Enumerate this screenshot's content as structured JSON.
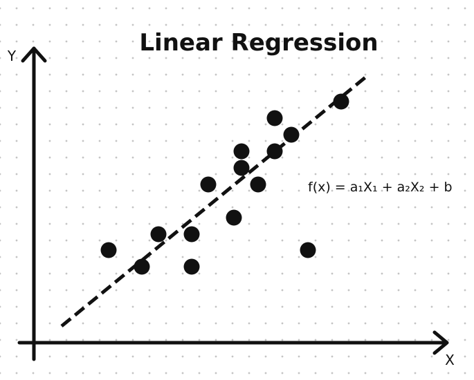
{
  "diagram": {
    "title": "Linear Regression",
    "axes": {
      "x_label": "X",
      "y_label": "Y"
    },
    "formula": "f(x) = a₁X₁ + a₂X₂ + b",
    "regression_line": {
      "style": "dashed"
    },
    "colors": {
      "ink": "#111111",
      "grid_dots": "#c4c4c4",
      "background": "#ffffff"
    },
    "data_point_count": 16
  }
}
